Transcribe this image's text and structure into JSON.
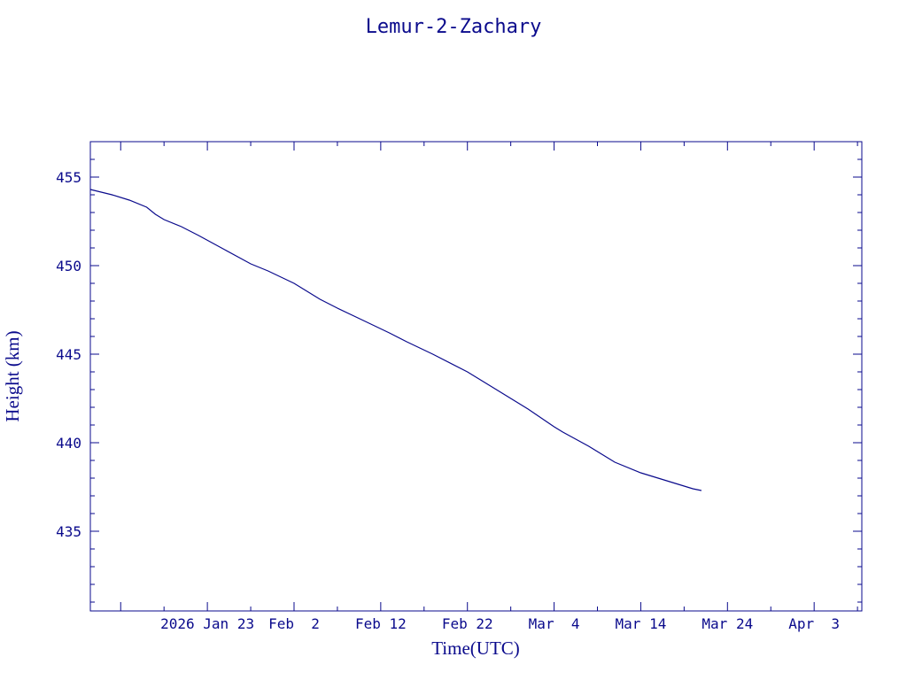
{
  "chart_data": {
    "type": "line",
    "title": "Lemur-2-Zachary",
    "xlabel": "Time(UTC)",
    "ylabel": "Height (km)",
    "xlim": [
      "2026-01-09T12:00",
      "2026-04-08T12:00"
    ],
    "ylim": [
      430.5,
      457
    ],
    "x_ticks": [
      {
        "date": "2026-01-23",
        "label": "2026 Jan 23"
      },
      {
        "date": "2026-02-02",
        "label": "Feb  2"
      },
      {
        "date": "2026-02-12",
        "label": "Feb 12"
      },
      {
        "date": "2026-02-22",
        "label": "Feb 22"
      },
      {
        "date": "2026-03-04",
        "label": "Mar  4"
      },
      {
        "date": "2026-03-14",
        "label": "Mar 14"
      },
      {
        "date": "2026-03-24",
        "label": "Mar 24"
      },
      {
        "date": "2026-04-03",
        "label": "Apr  3"
      }
    ],
    "y_ticks": [
      435,
      440,
      445,
      450,
      455
    ],
    "grid": false,
    "series": [
      {
        "color": "#0a0a8c",
        "x": [
          "2026-01-09T12:00",
          "2026-01-12",
          "2026-01-14",
          "2026-01-16",
          "2026-01-17",
          "2026-01-18",
          "2026-01-20",
          "2026-01-22",
          "2026-01-25",
          "2026-01-28",
          "2026-01-30",
          "2026-02-02",
          "2026-02-05",
          "2026-02-07",
          "2026-02-10",
          "2026-02-13",
          "2026-02-15",
          "2026-02-18",
          "2026-02-22",
          "2026-02-25",
          "2026-03-01",
          "2026-03-04",
          "2026-03-05",
          "2026-03-08",
          "2026-03-11",
          "2026-03-14",
          "2026-03-16",
          "2026-03-18",
          "2026-03-20",
          "2026-03-21"
        ],
        "y": [
          454.3,
          454.0,
          453.7,
          453.3,
          452.9,
          452.6,
          452.2,
          451.7,
          450.9,
          450.1,
          449.7,
          449.0,
          448.1,
          447.6,
          446.9,
          446.2,
          445.7,
          445.0,
          444.0,
          443.1,
          441.9,
          440.9,
          440.6,
          439.8,
          438.9,
          438.3,
          438.0,
          437.7,
          437.4,
          437.3
        ]
      }
    ]
  }
}
